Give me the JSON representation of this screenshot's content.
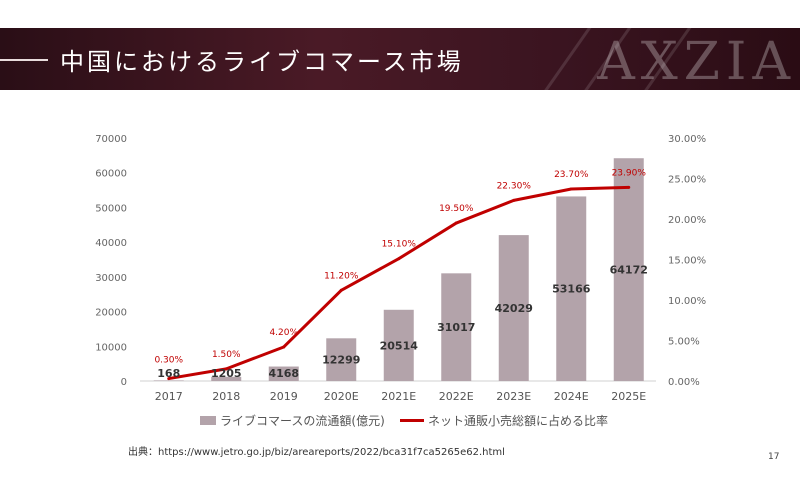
{
  "header": {
    "title": "中国におけるライブコマース市場",
    "brand": "AXZIA"
  },
  "footer": {
    "source": "出典：https://www.jetro.go.jp/biz/areareports/2022/bca31f7ca5265e62.html",
    "page_number": "17"
  },
  "colors": {
    "bar": "#b3a3aa",
    "line": "#c00000",
    "banner": "#3a1420"
  },
  "chart_data": {
    "type": "bar",
    "categories": [
      "2017",
      "2018",
      "2019",
      "2020E",
      "2021E",
      "2022E",
      "2023E",
      "2024E",
      "2025E"
    ],
    "series": [
      {
        "name": "ライブコマースの流通額(億元)",
        "type": "bar",
        "axis": "left",
        "values": [
          168,
          1205,
          4168,
          12299,
          20514,
          31017,
          42029,
          53166,
          64172
        ],
        "labels": [
          "168",
          "1205",
          "4168",
          "12299",
          "20514",
          "31017",
          "42029",
          "53166",
          "64172"
        ]
      },
      {
        "name": "ネット通販小売総額に占める比率",
        "type": "line",
        "axis": "right",
        "values": [
          0.3,
          1.5,
          4.2,
          11.2,
          15.1,
          19.5,
          22.3,
          23.7,
          23.9
        ],
        "labels": [
          "0.30%",
          "1.50%",
          "4.20%",
          "11.20%",
          "15.10%",
          "19.50%",
          "22.30%",
          "23.70%",
          "23.90%"
        ]
      }
    ],
    "y_left": {
      "lim": [
        0,
        70000
      ],
      "ticks": [
        "0",
        "10000",
        "20000",
        "30000",
        "40000",
        "50000",
        "60000",
        "70000"
      ]
    },
    "y_right": {
      "lim": [
        0,
        30
      ],
      "ticks": [
        "0.00%",
        "5.00%",
        "10.00%",
        "15.00%",
        "20.00%",
        "25.00%",
        "30.00%"
      ]
    },
    "grid": false,
    "legend_position": "bottom"
  }
}
